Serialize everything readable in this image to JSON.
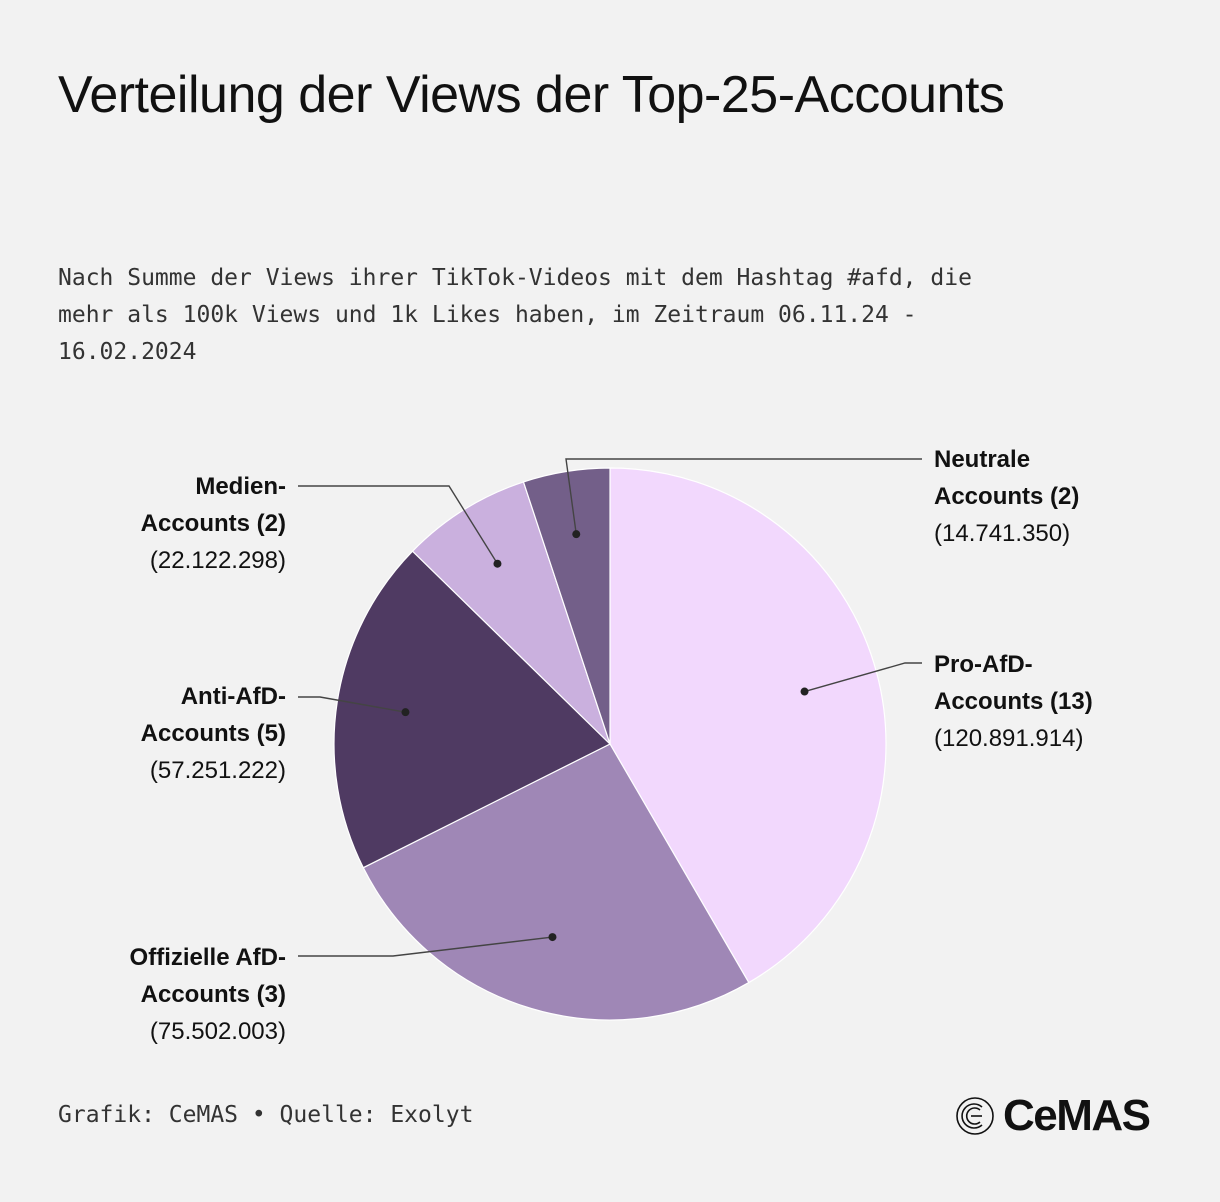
{
  "title": "Verteilung der Views der Top-25-Accounts",
  "subtitle": "Nach Summe der Views ihrer TikTok-Videos mit dem Hashtag #afd, die mehr als 100k Views und 1k Likes haben, im Zeitraum 06.11.24 - 16.02.2024",
  "footer": "Grafik: CeMAS • Quelle: Exolyt",
  "logo_text": "CeMAS",
  "chart_data": {
    "type": "pie",
    "title": "Verteilung der Views der Top-25-Accounts",
    "slices": [
      {
        "name_lines": [
          "Pro-AfD-",
          "Accounts (13)"
        ],
        "value": 120891914,
        "value_label": "(120.891.914)",
        "color": "#f2d8fd",
        "label_side": "right"
      },
      {
        "name_lines": [
          "Offizielle AfD-",
          "Accounts (3)"
        ],
        "value": 75502003,
        "value_label": "(75.502.003)",
        "color": "#9f87b6",
        "label_side": "left"
      },
      {
        "name_lines": [
          "Anti-AfD-",
          "Accounts (5)"
        ],
        "value": 57251222,
        "value_label": "(57.251.222)",
        "color": "#4f3a62",
        "label_side": "left"
      },
      {
        "name_lines": [
          "Medien-",
          "Accounts (2)"
        ],
        "value": 22122298,
        "value_label": "(22.122.298)",
        "color": "#cab0de",
        "label_side": "left"
      },
      {
        "name_lines": [
          "Neutrale",
          "Accounts (2)"
        ],
        "value": 14741350,
        "value_label": "(14.741.350)",
        "color": "#735f89",
        "label_side": "right"
      }
    ]
  }
}
